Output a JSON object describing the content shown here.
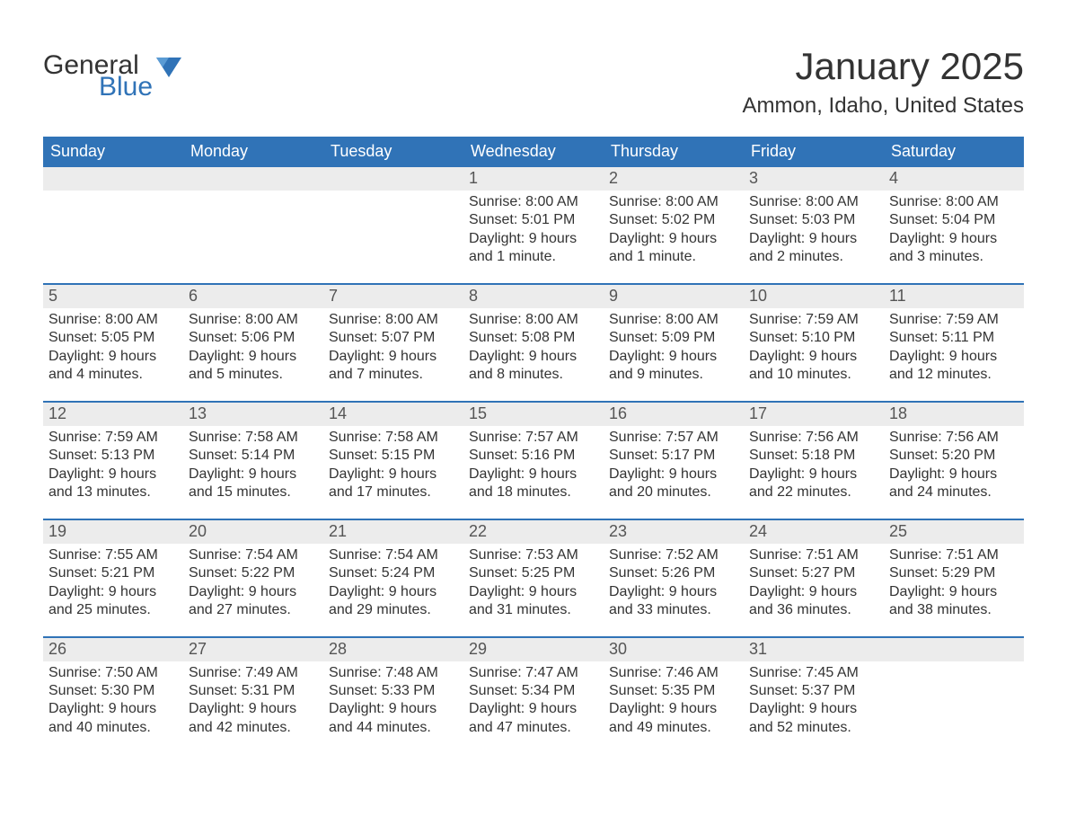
{
  "logo": {
    "general": "General",
    "blue": "Blue"
  },
  "title": "January 2025",
  "location": "Ammon, Idaho, United States",
  "colors": {
    "header_bg": "#3073b7",
    "header_text": "#ffffff",
    "daynum_bg": "#ececec",
    "border": "#3073b7",
    "text": "#333333"
  },
  "weekdays": [
    "Sunday",
    "Monday",
    "Tuesday",
    "Wednesday",
    "Thursday",
    "Friday",
    "Saturday"
  ],
  "weeks": [
    [
      null,
      null,
      null,
      {
        "n": "1",
        "sunrise": "Sunrise: 8:00 AM",
        "sunset": "Sunset: 5:01 PM",
        "d1": "Daylight: 9 hours",
        "d2": "and 1 minute."
      },
      {
        "n": "2",
        "sunrise": "Sunrise: 8:00 AM",
        "sunset": "Sunset: 5:02 PM",
        "d1": "Daylight: 9 hours",
        "d2": "and 1 minute."
      },
      {
        "n": "3",
        "sunrise": "Sunrise: 8:00 AM",
        "sunset": "Sunset: 5:03 PM",
        "d1": "Daylight: 9 hours",
        "d2": "and 2 minutes."
      },
      {
        "n": "4",
        "sunrise": "Sunrise: 8:00 AM",
        "sunset": "Sunset: 5:04 PM",
        "d1": "Daylight: 9 hours",
        "d2": "and 3 minutes."
      }
    ],
    [
      {
        "n": "5",
        "sunrise": "Sunrise: 8:00 AM",
        "sunset": "Sunset: 5:05 PM",
        "d1": "Daylight: 9 hours",
        "d2": "and 4 minutes."
      },
      {
        "n": "6",
        "sunrise": "Sunrise: 8:00 AM",
        "sunset": "Sunset: 5:06 PM",
        "d1": "Daylight: 9 hours",
        "d2": "and 5 minutes."
      },
      {
        "n": "7",
        "sunrise": "Sunrise: 8:00 AM",
        "sunset": "Sunset: 5:07 PM",
        "d1": "Daylight: 9 hours",
        "d2": "and 7 minutes."
      },
      {
        "n": "8",
        "sunrise": "Sunrise: 8:00 AM",
        "sunset": "Sunset: 5:08 PM",
        "d1": "Daylight: 9 hours",
        "d2": "and 8 minutes."
      },
      {
        "n": "9",
        "sunrise": "Sunrise: 8:00 AM",
        "sunset": "Sunset: 5:09 PM",
        "d1": "Daylight: 9 hours",
        "d2": "and 9 minutes."
      },
      {
        "n": "10",
        "sunrise": "Sunrise: 7:59 AM",
        "sunset": "Sunset: 5:10 PM",
        "d1": "Daylight: 9 hours",
        "d2": "and 10 minutes."
      },
      {
        "n": "11",
        "sunrise": "Sunrise: 7:59 AM",
        "sunset": "Sunset: 5:11 PM",
        "d1": "Daylight: 9 hours",
        "d2": "and 12 minutes."
      }
    ],
    [
      {
        "n": "12",
        "sunrise": "Sunrise: 7:59 AM",
        "sunset": "Sunset: 5:13 PM",
        "d1": "Daylight: 9 hours",
        "d2": "and 13 minutes."
      },
      {
        "n": "13",
        "sunrise": "Sunrise: 7:58 AM",
        "sunset": "Sunset: 5:14 PM",
        "d1": "Daylight: 9 hours",
        "d2": "and 15 minutes."
      },
      {
        "n": "14",
        "sunrise": "Sunrise: 7:58 AM",
        "sunset": "Sunset: 5:15 PM",
        "d1": "Daylight: 9 hours",
        "d2": "and 17 minutes."
      },
      {
        "n": "15",
        "sunrise": "Sunrise: 7:57 AM",
        "sunset": "Sunset: 5:16 PM",
        "d1": "Daylight: 9 hours",
        "d2": "and 18 minutes."
      },
      {
        "n": "16",
        "sunrise": "Sunrise: 7:57 AM",
        "sunset": "Sunset: 5:17 PM",
        "d1": "Daylight: 9 hours",
        "d2": "and 20 minutes."
      },
      {
        "n": "17",
        "sunrise": "Sunrise: 7:56 AM",
        "sunset": "Sunset: 5:18 PM",
        "d1": "Daylight: 9 hours",
        "d2": "and 22 minutes."
      },
      {
        "n": "18",
        "sunrise": "Sunrise: 7:56 AM",
        "sunset": "Sunset: 5:20 PM",
        "d1": "Daylight: 9 hours",
        "d2": "and 24 minutes."
      }
    ],
    [
      {
        "n": "19",
        "sunrise": "Sunrise: 7:55 AM",
        "sunset": "Sunset: 5:21 PM",
        "d1": "Daylight: 9 hours",
        "d2": "and 25 minutes."
      },
      {
        "n": "20",
        "sunrise": "Sunrise: 7:54 AM",
        "sunset": "Sunset: 5:22 PM",
        "d1": "Daylight: 9 hours",
        "d2": "and 27 minutes."
      },
      {
        "n": "21",
        "sunrise": "Sunrise: 7:54 AM",
        "sunset": "Sunset: 5:24 PM",
        "d1": "Daylight: 9 hours",
        "d2": "and 29 minutes."
      },
      {
        "n": "22",
        "sunrise": "Sunrise: 7:53 AM",
        "sunset": "Sunset: 5:25 PM",
        "d1": "Daylight: 9 hours",
        "d2": "and 31 minutes."
      },
      {
        "n": "23",
        "sunrise": "Sunrise: 7:52 AM",
        "sunset": "Sunset: 5:26 PM",
        "d1": "Daylight: 9 hours",
        "d2": "and 33 minutes."
      },
      {
        "n": "24",
        "sunrise": "Sunrise: 7:51 AM",
        "sunset": "Sunset: 5:27 PM",
        "d1": "Daylight: 9 hours",
        "d2": "and 36 minutes."
      },
      {
        "n": "25",
        "sunrise": "Sunrise: 7:51 AM",
        "sunset": "Sunset: 5:29 PM",
        "d1": "Daylight: 9 hours",
        "d2": "and 38 minutes."
      }
    ],
    [
      {
        "n": "26",
        "sunrise": "Sunrise: 7:50 AM",
        "sunset": "Sunset: 5:30 PM",
        "d1": "Daylight: 9 hours",
        "d2": "and 40 minutes."
      },
      {
        "n": "27",
        "sunrise": "Sunrise: 7:49 AM",
        "sunset": "Sunset: 5:31 PM",
        "d1": "Daylight: 9 hours",
        "d2": "and 42 minutes."
      },
      {
        "n": "28",
        "sunrise": "Sunrise: 7:48 AM",
        "sunset": "Sunset: 5:33 PM",
        "d1": "Daylight: 9 hours",
        "d2": "and 44 minutes."
      },
      {
        "n": "29",
        "sunrise": "Sunrise: 7:47 AM",
        "sunset": "Sunset: 5:34 PM",
        "d1": "Daylight: 9 hours",
        "d2": "and 47 minutes."
      },
      {
        "n": "30",
        "sunrise": "Sunrise: 7:46 AM",
        "sunset": "Sunset: 5:35 PM",
        "d1": "Daylight: 9 hours",
        "d2": "and 49 minutes."
      },
      {
        "n": "31",
        "sunrise": "Sunrise: 7:45 AM",
        "sunset": "Sunset: 5:37 PM",
        "d1": "Daylight: 9 hours",
        "d2": "and 52 minutes."
      },
      null
    ]
  ]
}
